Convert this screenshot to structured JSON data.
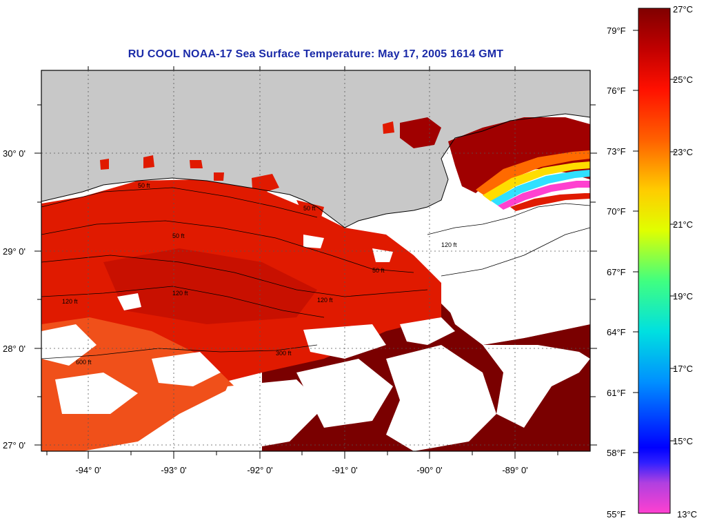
{
  "title": "RU COOL  NOAA-17  Sea Surface Temperature:  May 17, 2005 1614 GMT",
  "map": {
    "longitude_labels": [
      "-94° 0'",
      "-93° 0'",
      "-92° 0'",
      "-91° 0'",
      "-90° 0'",
      "-89° 0'"
    ],
    "latitude_labels": [
      "30° 0'",
      "29° 0'",
      "28° 0'",
      "27° 0'"
    ],
    "contour_labels": [
      "50 ft",
      "50 ft",
      "50 ft",
      "120 ft",
      "120 ft",
      "120 ft",
      "300 ft",
      "600 ft",
      "120 ft",
      "50 ft"
    ],
    "colors": {
      "land": "#c8c8c8",
      "cloud": "#ffffff",
      "sst_warm": "#7a0000",
      "sst_mid": "#e01a00",
      "sst_cool": "#f05a1a"
    }
  },
  "colorbar": {
    "fahrenheit_labels": [
      "79°F",
      "76°F",
      "73°F",
      "70°F",
      "67°F",
      "64°F",
      "61°F",
      "58°F",
      "55°F"
    ],
    "celsius_labels": [
      "27°C",
      "25°C",
      "23°C",
      "21°C",
      "19°C",
      "17°C",
      "15°C",
      "13°C"
    ],
    "range_c": [
      13,
      27
    ],
    "range_f": [
      55,
      80.6
    ]
  }
}
